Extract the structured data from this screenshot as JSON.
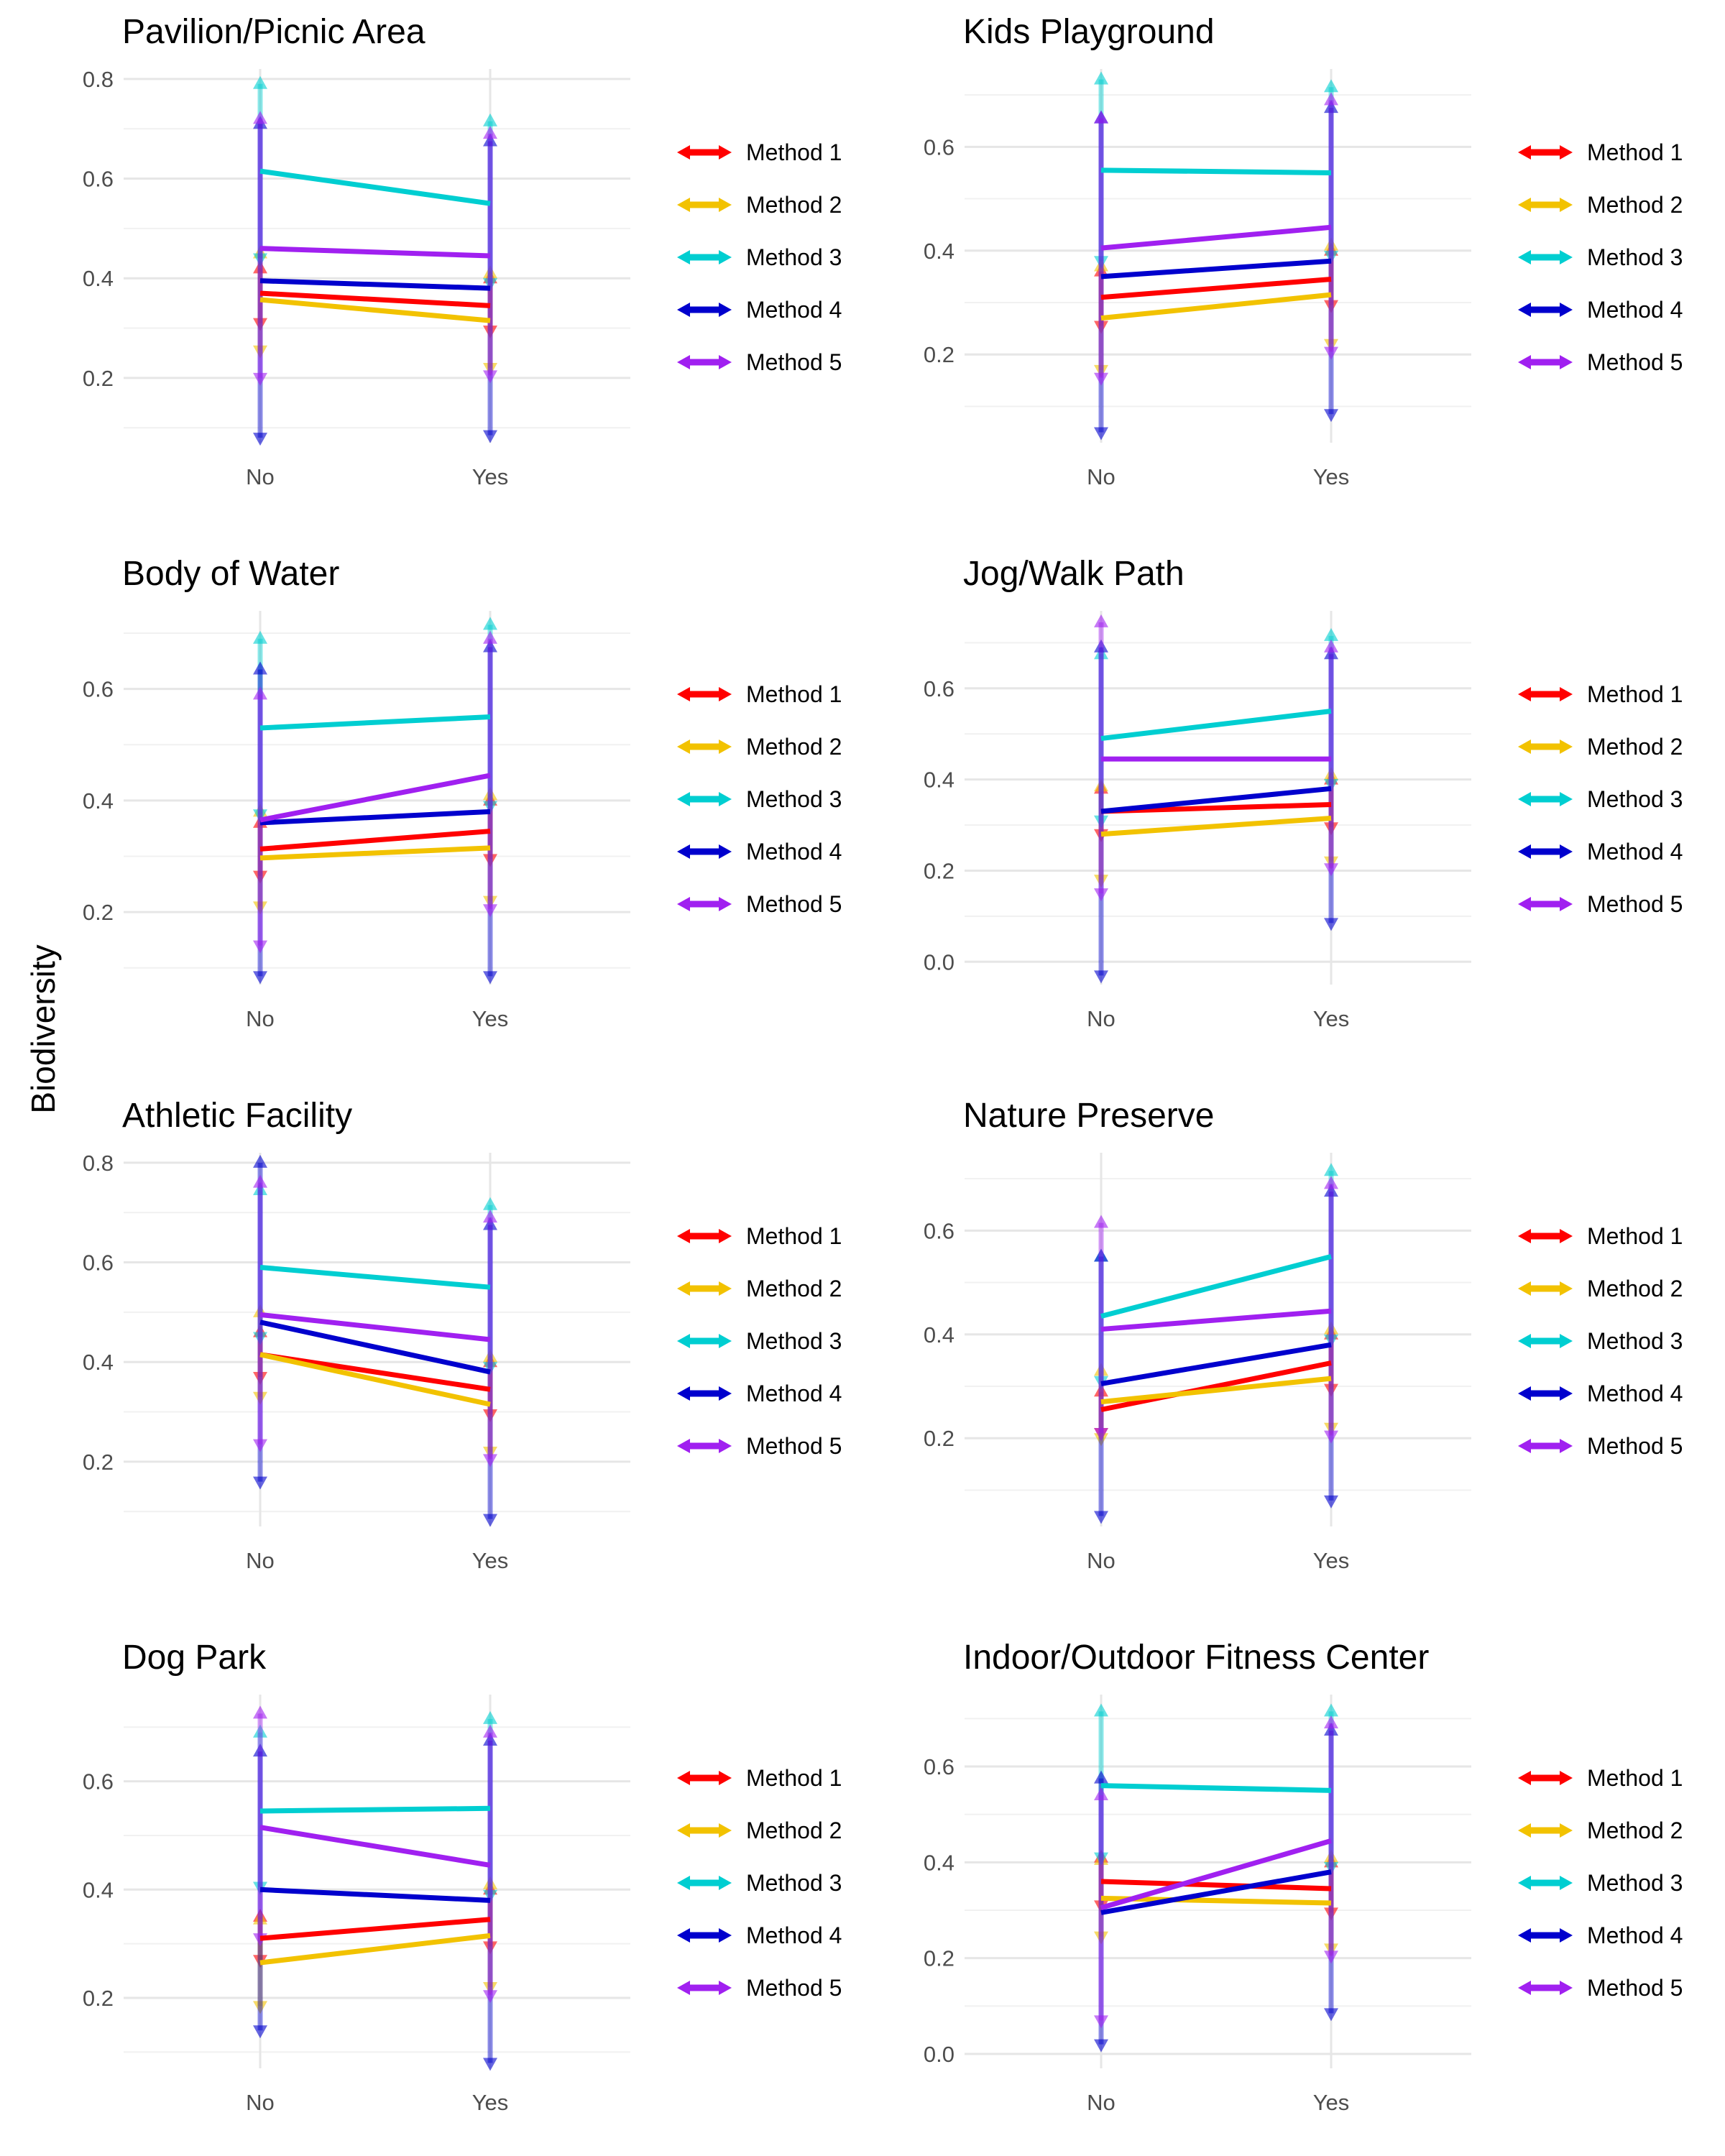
{
  "y_label": "Biodiversity",
  "method_colors": {
    "Method 1": "#FF0000",
    "Method 2": "#F2C200",
    "Method 3": "#00CED1",
    "Method 4": "#0000CD",
    "Method 5": "#A020F0"
  },
  "chart_data": [
    {
      "type": "line",
      "title": "Pavilion/Picnic Area",
      "categories": [
        "No",
        "Yes"
      ],
      "ylim": [
        0.07,
        0.82
      ],
      "yticks": [
        0.2,
        0.4,
        0.6,
        0.8
      ],
      "grid": true,
      "legend_position": "right",
      "series": [
        {
          "name": "Method 1",
          "values": [
            0.37,
            0.345
          ],
          "lower": [
            0.31,
            0.295
          ],
          "upper": [
            0.42,
            0.4
          ]
        },
        {
          "name": "Method 2",
          "values": [
            0.357,
            0.315
          ],
          "lower": [
            0.255,
            0.22
          ],
          "upper": [
            0.45,
            0.41
          ]
        },
        {
          "name": "Method 3",
          "values": [
            0.615,
            0.55
          ],
          "lower": [
            0.44,
            0.39
          ],
          "upper": [
            0.79,
            0.715
          ]
        },
        {
          "name": "Method 4",
          "values": [
            0.395,
            0.38
          ],
          "lower": [
            0.08,
            0.085
          ],
          "upper": [
            0.71,
            0.675
          ]
        },
        {
          "name": "Method 5",
          "values": [
            0.46,
            0.445
          ],
          "lower": [
            0.2,
            0.205
          ],
          "upper": [
            0.72,
            0.69
          ]
        }
      ]
    },
    {
      "type": "line",
      "title": "Kids Playground",
      "categories": [
        "No",
        "Yes"
      ],
      "ylim": [
        0.03,
        0.75
      ],
      "yticks": [
        0.2,
        0.4,
        0.6
      ],
      "grid": true,
      "legend_position": "right",
      "series": [
        {
          "name": "Method 1",
          "values": [
            0.31,
            0.345
          ],
          "lower": [
            0.255,
            0.295
          ],
          "upper": [
            0.36,
            0.4
          ]
        },
        {
          "name": "Method 2",
          "values": [
            0.27,
            0.315
          ],
          "lower": [
            0.17,
            0.22
          ],
          "upper": [
            0.37,
            0.41
          ]
        },
        {
          "name": "Method 3",
          "values": [
            0.555,
            0.55
          ],
          "lower": [
            0.38,
            0.39
          ],
          "upper": [
            0.73,
            0.715
          ]
        },
        {
          "name": "Method 4",
          "values": [
            0.35,
            0.38
          ],
          "lower": [
            0.05,
            0.085
          ],
          "upper": [
            0.655,
            0.675
          ]
        },
        {
          "name": "Method 5",
          "values": [
            0.405,
            0.445
          ],
          "lower": [
            0.155,
            0.205
          ],
          "upper": [
            0.655,
            0.69
          ]
        }
      ]
    },
    {
      "type": "line",
      "title": "Body of Water",
      "categories": [
        "No",
        "Yes"
      ],
      "ylim": [
        0.07,
        0.74
      ],
      "yticks": [
        0.2,
        0.4,
        0.6
      ],
      "grid": true,
      "legend_position": "right",
      "series": [
        {
          "name": "Method 1",
          "values": [
            0.313,
            0.345
          ],
          "lower": [
            0.265,
            0.295
          ],
          "upper": [
            0.36,
            0.4
          ]
        },
        {
          "name": "Method 2",
          "values": [
            0.297,
            0.315
          ],
          "lower": [
            0.21,
            0.22
          ],
          "upper": [
            0.38,
            0.41
          ]
        },
        {
          "name": "Method 3",
          "values": [
            0.53,
            0.55
          ],
          "lower": [
            0.375,
            0.39
          ],
          "upper": [
            0.69,
            0.715
          ]
        },
        {
          "name": "Method 4",
          "values": [
            0.36,
            0.38
          ],
          "lower": [
            0.085,
            0.085
          ],
          "upper": [
            0.635,
            0.675
          ]
        },
        {
          "name": "Method 5",
          "values": [
            0.365,
            0.445
          ],
          "lower": [
            0.14,
            0.205
          ],
          "upper": [
            0.59,
            0.69
          ]
        }
      ]
    },
    {
      "type": "line",
      "title": "Jog/Walk Path",
      "categories": [
        "No",
        "Yes"
      ],
      "ylim": [
        -0.05,
        0.77
      ],
      "yticks": [
        0.0,
        0.2,
        0.4,
        0.6
      ],
      "grid": true,
      "legend_position": "right",
      "series": [
        {
          "name": "Method 1",
          "values": [
            0.33,
            0.345
          ],
          "lower": [
            0.28,
            0.295
          ],
          "upper": [
            0.38,
            0.4
          ]
        },
        {
          "name": "Method 2",
          "values": [
            0.28,
            0.315
          ],
          "lower": [
            0.18,
            0.22
          ],
          "upper": [
            0.385,
            0.41
          ]
        },
        {
          "name": "Method 3",
          "values": [
            0.49,
            0.55
          ],
          "lower": [
            0.31,
            0.39
          ],
          "upper": [
            0.675,
            0.715
          ]
        },
        {
          "name": "Method 4",
          "values": [
            0.33,
            0.38
          ],
          "lower": [
            -0.03,
            0.085
          ],
          "upper": [
            0.69,
            0.675
          ]
        },
        {
          "name": "Method 5",
          "values": [
            0.445,
            0.445
          ],
          "lower": [
            0.15,
            0.205
          ],
          "upper": [
            0.745,
            0.69
          ]
        }
      ]
    },
    {
      "type": "line",
      "title": "Athletic Facility",
      "categories": [
        "No",
        "Yes"
      ],
      "ylim": [
        0.07,
        0.82
      ],
      "yticks": [
        0.2,
        0.4,
        0.6,
        0.8
      ],
      "grid": true,
      "legend_position": "right",
      "series": [
        {
          "name": "Method 1",
          "values": [
            0.415,
            0.345
          ],
          "lower": [
            0.37,
            0.295
          ],
          "upper": [
            0.46,
            0.4
          ]
        },
        {
          "name": "Method 2",
          "values": [
            0.415,
            0.315
          ],
          "lower": [
            0.33,
            0.22
          ],
          "upper": [
            0.5,
            0.41
          ]
        },
        {
          "name": "Method 3",
          "values": [
            0.59,
            0.55
          ],
          "lower": [
            0.45,
            0.39
          ],
          "upper": [
            0.745,
            0.715
          ]
        },
        {
          "name": "Method 4",
          "values": [
            0.48,
            0.38
          ],
          "lower": [
            0.16,
            0.085
          ],
          "upper": [
            0.8,
            0.675
          ]
        },
        {
          "name": "Method 5",
          "values": [
            0.495,
            0.445
          ],
          "lower": [
            0.235,
            0.205
          ],
          "upper": [
            0.76,
            0.69
          ]
        }
      ]
    },
    {
      "type": "line",
      "title": "Nature Preserve",
      "categories": [
        "No",
        "Yes"
      ],
      "ylim": [
        0.03,
        0.75
      ],
      "yticks": [
        0.2,
        0.4,
        0.6
      ],
      "grid": true,
      "legend_position": "right",
      "series": [
        {
          "name": "Method 1",
          "values": [
            0.255,
            0.345
          ],
          "lower": [
            0.21,
            0.295
          ],
          "upper": [
            0.29,
            0.4
          ]
        },
        {
          "name": "Method 2",
          "values": [
            0.27,
            0.315
          ],
          "lower": [
            0.2,
            0.22
          ],
          "upper": [
            0.33,
            0.41
          ]
        },
        {
          "name": "Method 3",
          "values": [
            0.435,
            0.55
          ],
          "lower": [
            0.31,
            0.39
          ],
          "upper": [
            0.55,
            0.715
          ]
        },
        {
          "name": "Method 4",
          "values": [
            0.305,
            0.38
          ],
          "lower": [
            0.05,
            0.08
          ],
          "upper": [
            0.55,
            0.675
          ]
        },
        {
          "name": "Method 5",
          "values": [
            0.41,
            0.445
          ],
          "lower": [
            0.21,
            0.205
          ],
          "upper": [
            0.615,
            0.69
          ]
        }
      ]
    },
    {
      "type": "line",
      "title": "Dog Park",
      "categories": [
        "No",
        "Yes"
      ],
      "ylim": [
        0.07,
        0.76
      ],
      "yticks": [
        0.2,
        0.4,
        0.6
      ],
      "grid": true,
      "legend_position": "right",
      "series": [
        {
          "name": "Method 1",
          "values": [
            0.31,
            0.345
          ],
          "lower": [
            0.27,
            0.295
          ],
          "upper": [
            0.35,
            0.4
          ]
        },
        {
          "name": "Method 2",
          "values": [
            0.265,
            0.315
          ],
          "lower": [
            0.185,
            0.22
          ],
          "upper": [
            0.345,
            0.41
          ]
        },
        {
          "name": "Method 3",
          "values": [
            0.545,
            0.55
          ],
          "lower": [
            0.405,
            0.39
          ],
          "upper": [
            0.69,
            0.715
          ]
        },
        {
          "name": "Method 4",
          "values": [
            0.4,
            0.38
          ],
          "lower": [
            0.14,
            0.08
          ],
          "upper": [
            0.655,
            0.675
          ]
        },
        {
          "name": "Method 5",
          "values": [
            0.515,
            0.445
          ],
          "lower": [
            0.31,
            0.205
          ],
          "upper": [
            0.725,
            0.69
          ]
        }
      ]
    },
    {
      "type": "line",
      "title": "Indoor/Outdoor Fitness Center",
      "categories": [
        "No",
        "Yes"
      ],
      "ylim": [
        -0.03,
        0.75
      ],
      "yticks": [
        0.0,
        0.2,
        0.4,
        0.6
      ],
      "grid": true,
      "legend_position": "right",
      "series": [
        {
          "name": "Method 1",
          "values": [
            0.36,
            0.345
          ],
          "lower": [
            0.31,
            0.295
          ],
          "upper": [
            0.41,
            0.4
          ]
        },
        {
          "name": "Method 2",
          "values": [
            0.325,
            0.315
          ],
          "lower": [
            0.245,
            0.22
          ],
          "upper": [
            0.405,
            0.41
          ]
        },
        {
          "name": "Method 3",
          "values": [
            0.56,
            0.55
          ],
          "lower": [
            0.41,
            0.39
          ],
          "upper": [
            0.715,
            0.715
          ]
        },
        {
          "name": "Method 4",
          "values": [
            0.295,
            0.38
          ],
          "lower": [
            0.02,
            0.085
          ],
          "upper": [
            0.575,
            0.675
          ]
        },
        {
          "name": "Method 5",
          "values": [
            0.305,
            0.445
          ],
          "lower": [
            0.07,
            0.205
          ],
          "upper": [
            0.54,
            0.69
          ]
        }
      ]
    }
  ]
}
